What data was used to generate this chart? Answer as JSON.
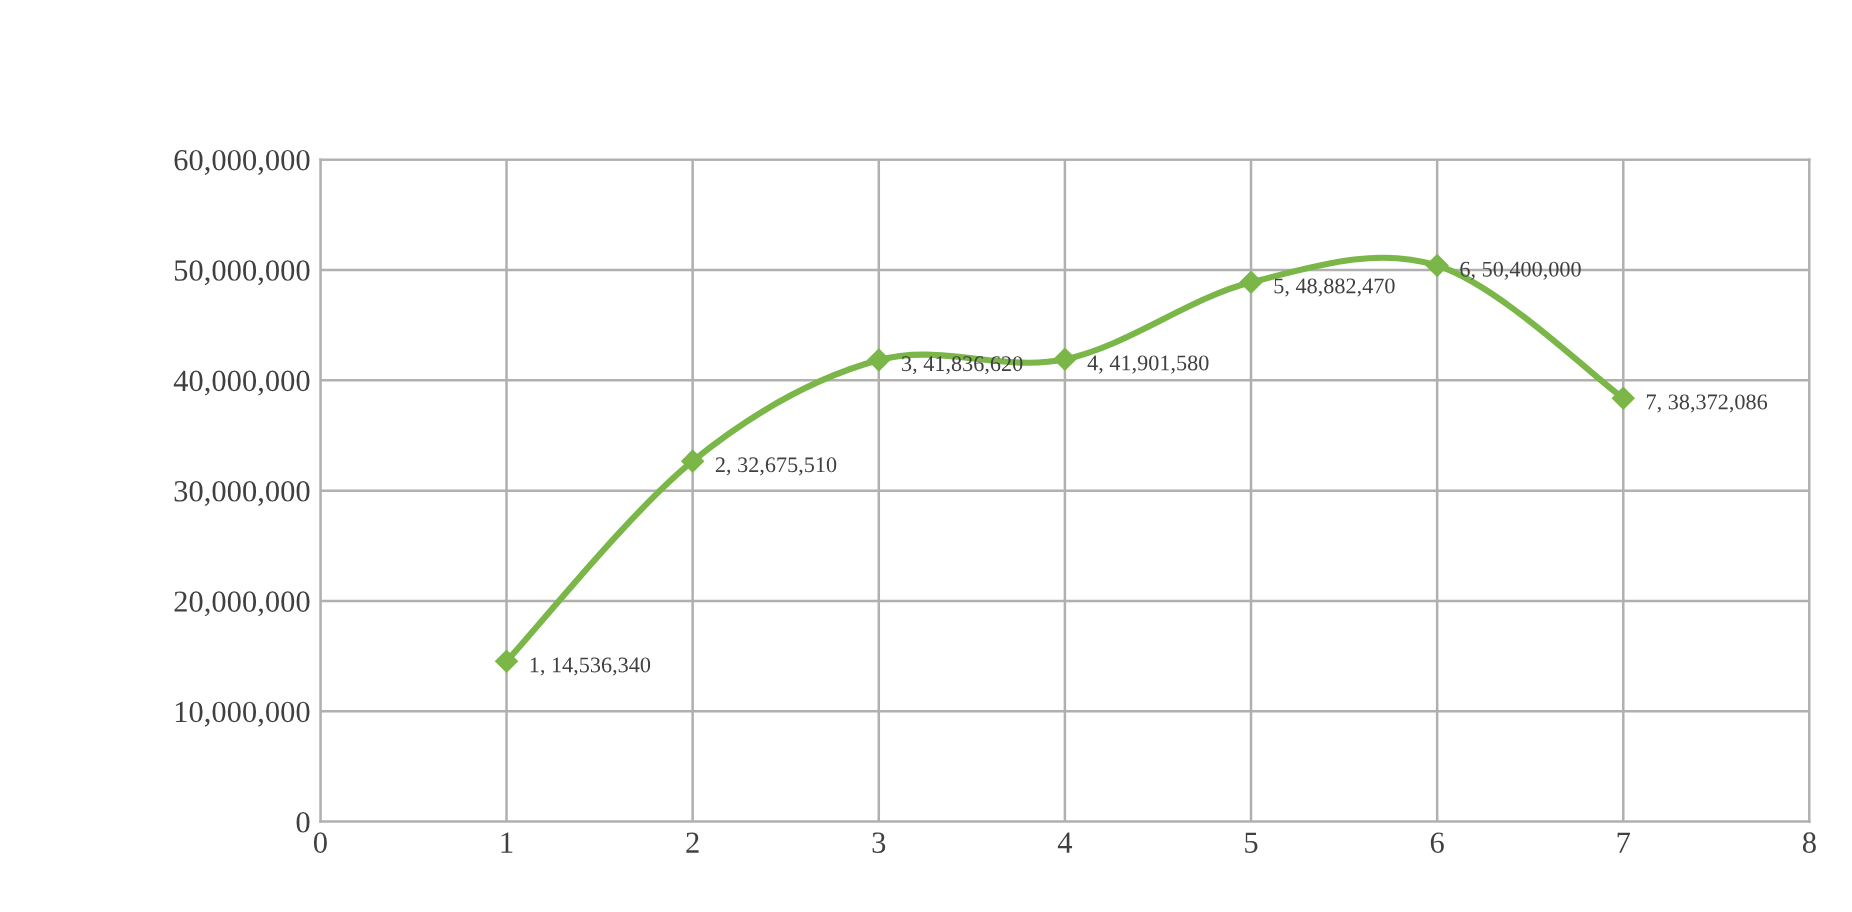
{
  "chart_data": {
    "type": "line",
    "x": [
      1,
      2,
      3,
      4,
      5,
      6,
      7
    ],
    "values": [
      14536340,
      32675510,
      41836620,
      41901580,
      48882470,
      50400000,
      38372086
    ],
    "value_labels": [
      "1, 14,536,340",
      "2, 32,675,510",
      "3, 41,836,620",
      "4, 41,901,580",
      "5, 48,882,470",
      "6, 50,400,000",
      "7, 38,372,086"
    ],
    "color": "#7ab648",
    "marker": "diamond",
    "line_style": "solid",
    "grid": true,
    "xlim": [
      0,
      8
    ],
    "xticks": [
      0,
      1,
      2,
      3,
      4,
      5,
      6,
      7,
      8
    ],
    "ylim": [
      0,
      60000000
    ],
    "yticks": [
      0,
      {
        "value": 10000000,
        "label": "10,000,000"
      },
      {
        "value": 20000000,
        "label": "20,000,000"
      },
      {
        "value": 30000000,
        "label": "30,000,000"
      },
      {
        "value": 40000000,
        "label": "40,000,000"
      },
      {
        "value": 50000000,
        "label": "50,000,000"
      },
      {
        "value": 60000000,
        "label": "60,000,000"
      }
    ]
  }
}
